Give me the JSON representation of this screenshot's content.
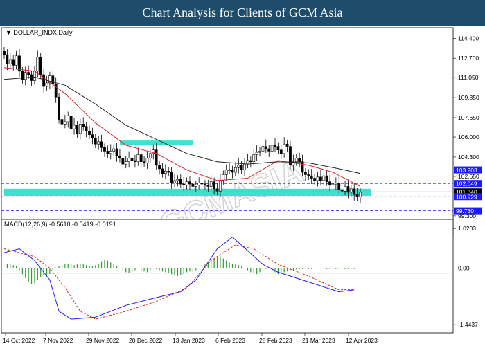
{
  "header": {
    "title": "Chart Analysis for Clients of GCM Asia"
  },
  "watermark": "GCMASIA",
  "colors": {
    "bull_candle": "#ffffff",
    "bear_candle": "#000000",
    "fast_ma": "#e02020",
    "slow_ma": "#222222",
    "zone": "#40e0d0",
    "level_line": "#1a1aff",
    "macd_line": "#1a1aff",
    "signal_line": "#e02020",
    "histogram": "#2e9e2e"
  },
  "price_panel": {
    "symbol_label": "DOLLAR_INDX,Daily",
    "y_ticks": [
      "114.400",
      "112.700",
      "111.050",
      "109.350",
      "107.650",
      "106.000",
      "104.300",
      "102.650",
      "99.300"
    ],
    "level_labels": [
      {
        "value": "103.203",
        "kind": "resistance"
      },
      {
        "value": "102.049",
        "kind": "resistance"
      },
      {
        "value": "101.340",
        "kind": "current"
      },
      {
        "value": "100.929",
        "kind": "support"
      },
      {
        "value": "99.730",
        "kind": "support"
      }
    ]
  },
  "macd_panel": {
    "label": "MACD(12,26,9) -0.5610 -0.5419 -0.0191",
    "y_ticks": [
      "1.0203",
      "0.00",
      "-1.4437"
    ]
  },
  "x_ticks": [
    "14 Oct 2022",
    "7 Nov 2022",
    "29 Nov 2022",
    "20 Dec 2022",
    "13 Jan 2023",
    "6 Feb 2023",
    "28 Feb 2023",
    "21 Mar 2023",
    "12 Apr 2023"
  ],
  "chart_data": {
    "type": "line",
    "title": "",
    "close_series": [
      113.0,
      112.2,
      112.6,
      112.1,
      112.9,
      111.6,
      110.9,
      111.5,
      111.3,
      110.8,
      111.6,
      112.8,
      111.3,
      110.3,
      110.6,
      111.2,
      110.5,
      109.4,
      107.5,
      107.1,
      107.3,
      107.8,
      106.7,
      107.0,
      106.3,
      107.1,
      106.9,
      106.5,
      106.2,
      105.9,
      105.4,
      105.6,
      105.1,
      104.8,
      104.6,
      104.8,
      105.0,
      104.4,
      104.2,
      103.7,
      103.9,
      104.2,
      104.0,
      103.9,
      104.5,
      103.9,
      103.8,
      104.2,
      104.6,
      104.9,
      103.6,
      103.3,
      102.9,
      103.1,
      103.0,
      102.1,
      102.3,
      102.4,
      102.0,
      101.9,
      102.2,
      102.0,
      101.8,
      101.9,
      102.1,
      102.0,
      101.9,
      101.8,
      102.2,
      101.6,
      101.4,
      102.3,
      102.8,
      103.2,
      103.2,
      103.0,
      103.4,
      103.6,
      103.2,
      103.7,
      104.0,
      103.9,
      104.5,
      104.7,
      104.8,
      105.2,
      105.0,
      104.8,
      105.3,
      105.2,
      104.9,
      104.6,
      105.4,
      105.2,
      103.6,
      103.9,
      104.2,
      103.9,
      103.0,
      102.8,
      102.7,
      102.5,
      102.3,
      102.6,
      102.3,
      102.7,
      102.2,
      101.9,
      102.0,
      102.1,
      101.5,
      101.4,
      101.8,
      101.3,
      101.6,
      101.1,
      100.9,
      101.3
    ],
    "fast_ma": [
      {
        "i": 0,
        "v": 111.9
      },
      {
        "i": 10,
        "v": 111.6
      },
      {
        "i": 20,
        "v": 109.7
      },
      {
        "i": 30,
        "v": 107.2
      },
      {
        "i": 40,
        "v": 105.3
      },
      {
        "i": 50,
        "v": 104.6
      },
      {
        "i": 60,
        "v": 103.2
      },
      {
        "i": 70,
        "v": 102.3
      },
      {
        "i": 80,
        "v": 102.5
      },
      {
        "i": 90,
        "v": 104.0
      },
      {
        "i": 100,
        "v": 103.6
      },
      {
        "i": 108,
        "v": 103.0
      },
      {
        "i": 117,
        "v": 101.8
      }
    ],
    "slow_ma": [
      {
        "i": 0,
        "v": 110.9
      },
      {
        "i": 10,
        "v": 111.1
      },
      {
        "i": 20,
        "v": 110.4
      },
      {
        "i": 30,
        "v": 108.8
      },
      {
        "i": 40,
        "v": 107.0
      },
      {
        "i": 50,
        "v": 105.8
      },
      {
        "i": 60,
        "v": 104.6
      },
      {
        "i": 70,
        "v": 103.9
      },
      {
        "i": 80,
        "v": 103.7
      },
      {
        "i": 90,
        "v": 103.9
      },
      {
        "i": 100,
        "v": 103.8
      },
      {
        "i": 110,
        "v": 103.3
      },
      {
        "i": 117,
        "v": 102.9
      }
    ],
    "zones": [
      {
        "from_index": 38,
        "to_index": 62,
        "low": 105.3,
        "high": 105.7
      },
      {
        "from_index": 0,
        "to_index": 122,
        "low": 101.0,
        "high": 101.6
      }
    ],
    "levels": [
      103.203,
      102.049,
      100.929,
      99.73
    ],
    "ylim": [
      99.0,
      115.3
    ],
    "macd": {
      "ylim": [
        -1.6,
        1.2
      ],
      "macd_line": [
        {
          "i": 0,
          "v": 0.4
        },
        {
          "i": 5,
          "v": 0.5
        },
        {
          "i": 10,
          "v": 0.2
        },
        {
          "i": 15,
          "v": -0.3
        },
        {
          "i": 18,
          "v": -1.1
        },
        {
          "i": 22,
          "v": -1.3
        },
        {
          "i": 30,
          "v": -1.25
        },
        {
          "i": 40,
          "v": -0.95
        },
        {
          "i": 50,
          "v": -0.75
        },
        {
          "i": 58,
          "v": -0.6
        },
        {
          "i": 63,
          "v": -0.3
        },
        {
          "i": 70,
          "v": 0.5
        },
        {
          "i": 75,
          "v": 0.8
        },
        {
          "i": 80,
          "v": 0.45
        },
        {
          "i": 85,
          "v": 0.1
        },
        {
          "i": 90,
          "v": -0.1
        },
        {
          "i": 100,
          "v": -0.35
        },
        {
          "i": 110,
          "v": -0.6
        },
        {
          "i": 115,
          "v": -0.55
        }
      ],
      "signal_line": [
        {
          "i": 0,
          "v": 0.5
        },
        {
          "i": 10,
          "v": 0.3
        },
        {
          "i": 15,
          "v": 0.0
        },
        {
          "i": 20,
          "v": -0.5
        },
        {
          "i": 25,
          "v": -1.1
        },
        {
          "i": 30,
          "v": -1.3
        },
        {
          "i": 40,
          "v": -1.1
        },
        {
          "i": 50,
          "v": -0.85
        },
        {
          "i": 60,
          "v": -0.5
        },
        {
          "i": 68,
          "v": 0.2
        },
        {
          "i": 76,
          "v": 0.6
        },
        {
          "i": 82,
          "v": 0.5
        },
        {
          "i": 90,
          "v": 0.1
        },
        {
          "i": 100,
          "v": -0.2
        },
        {
          "i": 110,
          "v": -0.55
        },
        {
          "i": 115,
          "v": -0.54
        }
      ],
      "histogram": [
        0.0,
        0.1,
        0.12,
        0.08,
        0.05,
        -0.05,
        -0.15,
        -0.25,
        -0.35,
        -0.4,
        -0.38,
        -0.3,
        -0.22,
        -0.18,
        -0.2,
        -0.15,
        -0.05,
        0.02,
        0.05,
        0.08,
        0.1,
        0.12,
        0.1,
        0.08,
        0.1,
        0.12,
        0.1,
        0.08,
        0.06,
        0.05,
        0.08,
        0.12,
        0.18,
        0.22,
        0.2,
        0.15,
        0.1,
        0.05,
        0.0,
        -0.05,
        -0.1,
        -0.12,
        -0.1,
        -0.05,
        0.0,
        -0.05,
        -0.08,
        -0.1,
        -0.05,
        0.0,
        -0.02,
        -0.05,
        -0.08,
        -0.1,
        -0.12,
        -0.15,
        -0.18,
        -0.2,
        -0.18,
        -0.15,
        -0.1,
        -0.08,
        -0.1,
        -0.05,
        0.0,
        0.05,
        0.1,
        0.15,
        0.2,
        0.25,
        0.28,
        0.3,
        0.25,
        0.2,
        0.15,
        0.12,
        0.1,
        0.08,
        0.05,
        0.0,
        -0.05,
        -0.1,
        -0.12,
        -0.15,
        -0.1,
        -0.05,
        -0.02,
        0.0,
        -0.05,
        -0.1,
        -0.15,
        -0.12,
        -0.1,
        -0.08,
        -0.05,
        -0.04,
        -0.03,
        -0.02,
        -0.02,
        -0.01,
        -0.02,
        -0.02,
        -0.01,
        0.0,
        0.0,
        -0.01,
        -0.02,
        -0.02,
        -0.02,
        -0.02,
        -0.02,
        -0.02,
        -0.02,
        -0.02,
        -0.02,
        -0.02
      ]
    }
  }
}
